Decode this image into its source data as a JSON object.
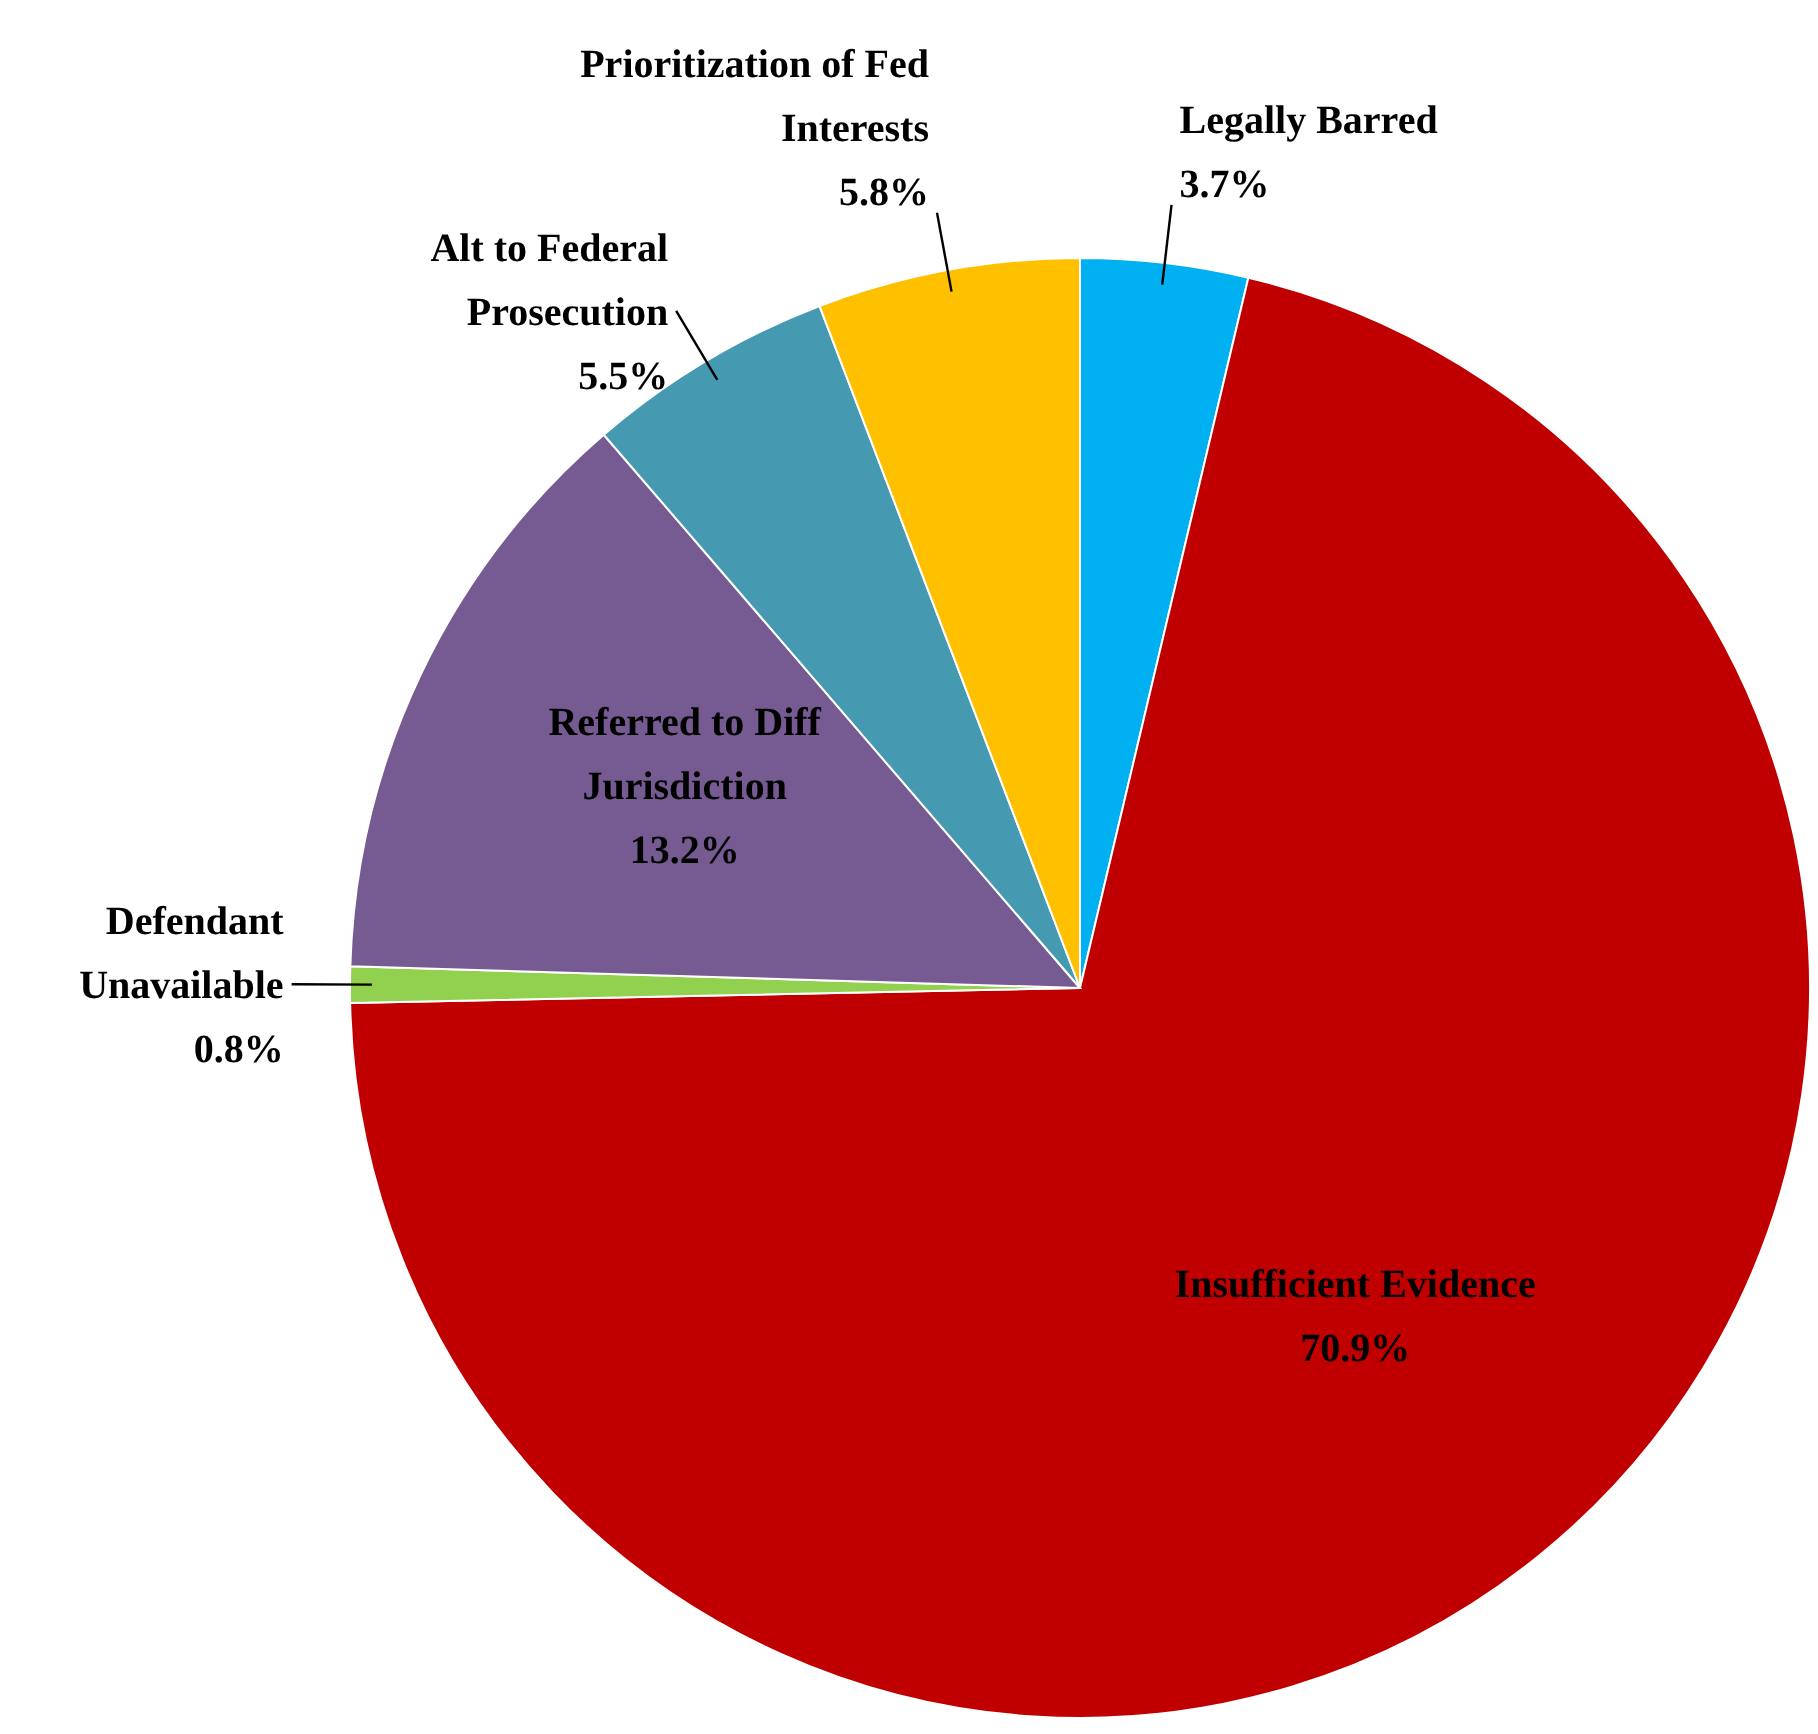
{
  "chart_data": {
    "type": "pie",
    "categories": [
      "Legally Barred",
      "Insufficient Evidence",
      "Defendant Unavailable",
      "Referred to Diff Jurisdiction",
      "Alt to Federal Prosecution",
      "Prioritization of Fed Interests"
    ],
    "values": [
      3.7,
      70.9,
      0.8,
      13.2,
      5.5,
      5.8
    ],
    "value_labels": [
      "3.7%",
      "70.9%",
      "0.8%",
      "13.2%",
      "5.5%",
      "5.8%"
    ],
    "colors": [
      "#00b0f0",
      "#c00000",
      "#92d050",
      "#765b92",
      "#4599b0",
      "#ffc000"
    ],
    "legend": false
  }
}
